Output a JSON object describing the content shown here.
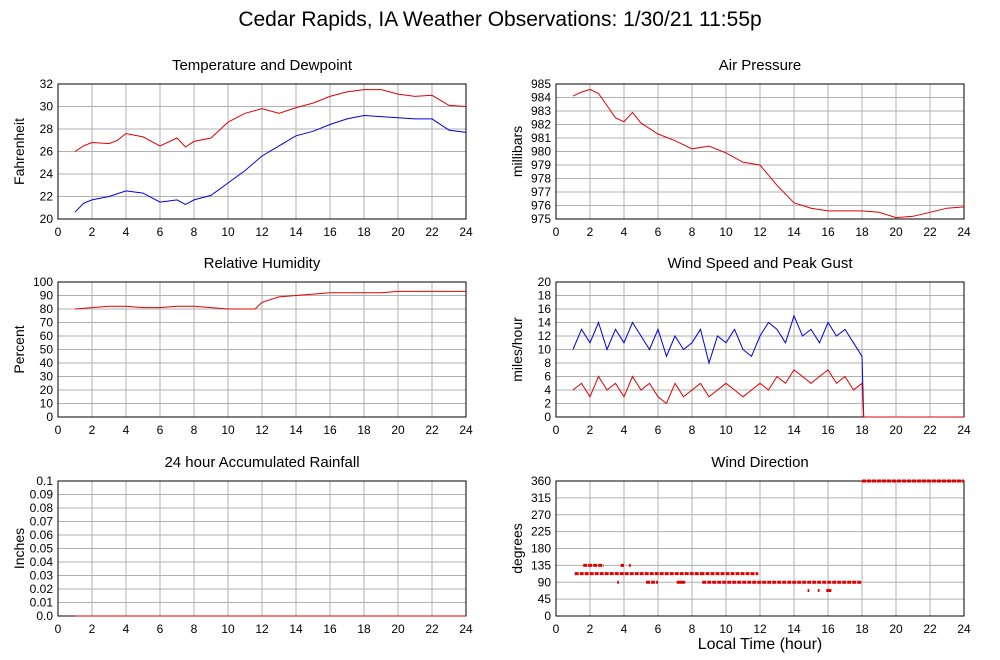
{
  "page_title": "Cedar Rapids, IA Weather Observations: 1/30/21 11:55p",
  "bottom_xlabel": "Local Time (hour)",
  "colors": {
    "red": "#e00000",
    "blue": "#0000e0",
    "grid": "#b0b0b0"
  },
  "chart_data": [
    {
      "id": "temp",
      "type": "line",
      "title": "Temperature and Dewpoint",
      "ylabel": "Fahrenheit",
      "xlim": [
        0,
        24
      ],
      "ylim": [
        20,
        32
      ],
      "xticks": [
        2,
        4,
        6,
        8,
        10,
        12,
        14,
        16,
        18,
        20,
        22,
        24
      ],
      "yticks": [
        20,
        22,
        24,
        26,
        28,
        30,
        32
      ],
      "grid": true,
      "series": [
        {
          "color": "#e00000",
          "x": [
            1,
            1.5,
            2,
            3,
            3.5,
            4,
            5,
            6,
            7,
            7.5,
            8,
            9,
            10,
            11,
            12,
            13,
            14,
            15,
            16,
            17,
            18,
            19,
            20,
            21,
            22,
            23,
            24
          ],
          "y": [
            26.0,
            26.5,
            26.8,
            26.7,
            27.0,
            27.6,
            27.3,
            26.5,
            27.2,
            26.4,
            26.9,
            27.2,
            28.6,
            29.4,
            29.8,
            29.4,
            29.9,
            30.3,
            30.9,
            31.3,
            31.5,
            31.5,
            31.1,
            30.9,
            31.0,
            30.1,
            30.0
          ]
        },
        {
          "color": "#0000e0",
          "x": [
            1,
            1.5,
            2,
            3,
            4,
            5,
            6,
            7,
            7.5,
            8,
            9,
            10,
            11,
            12,
            13,
            14,
            15,
            16,
            17,
            18,
            19,
            20,
            21,
            22,
            23,
            24
          ],
          "y": [
            20.6,
            21.4,
            21.7,
            22.0,
            22.5,
            22.3,
            21.5,
            21.7,
            21.3,
            21.7,
            22.1,
            23.2,
            24.3,
            25.6,
            26.5,
            27.4,
            27.8,
            28.4,
            28.9,
            29.2,
            29.1,
            29.0,
            28.9,
            28.9,
            27.9,
            27.7
          ]
        }
      ]
    },
    {
      "id": "pressure",
      "type": "line",
      "title": "Air Pressure",
      "ylabel": "millibars",
      "xlim": [
        0,
        24
      ],
      "ylim": [
        975,
        985
      ],
      "xticks": [
        2,
        4,
        6,
        8,
        10,
        12,
        14,
        16,
        18,
        20,
        22,
        24
      ],
      "yticks": [
        975,
        976,
        977,
        978,
        979,
        980,
        981,
        982,
        983,
        984,
        985
      ],
      "grid": true,
      "series": [
        {
          "color": "#e00000",
          "x": [
            1,
            1.5,
            2,
            2.5,
            3,
            3.5,
            4,
            4.5,
            5,
            6,
            7,
            8,
            9,
            10,
            11,
            12,
            13,
            14,
            15,
            16,
            17,
            18,
            19,
            20,
            21,
            22,
            23,
            24
          ],
          "y": [
            984.1,
            984.4,
            984.6,
            984.3,
            983.4,
            982.5,
            982.2,
            982.9,
            982.1,
            981.3,
            980.8,
            980.2,
            980.4,
            979.9,
            979.2,
            979.0,
            977.5,
            976.2,
            975.8,
            975.6,
            975.6,
            975.6,
            975.5,
            975.1,
            975.2,
            975.5,
            975.8,
            975.9
          ]
        }
      ]
    },
    {
      "id": "humidity",
      "type": "line",
      "title": "Relative Humidity",
      "ylabel": "Percent",
      "xlim": [
        0,
        24
      ],
      "ylim": [
        0,
        100
      ],
      "xticks": [
        2,
        4,
        6,
        8,
        10,
        12,
        14,
        16,
        18,
        20,
        22,
        24
      ],
      "yticks": [
        0,
        10,
        20,
        30,
        40,
        50,
        60,
        70,
        80,
        90,
        100
      ],
      "grid": true,
      "series": [
        {
          "color": "#e00000",
          "x": [
            1,
            2,
            3,
            4,
            5,
            6,
            7,
            8,
            9,
            10,
            11,
            11.6,
            12,
            13,
            14,
            15,
            16,
            17,
            18,
            19,
            20,
            21,
            22,
            23,
            24
          ],
          "y": [
            80,
            81,
            82,
            82,
            81,
            81,
            82,
            82,
            81,
            80,
            80,
            80,
            85,
            89,
            90,
            91,
            92,
            92,
            92,
            92,
            93,
            93,
            93,
            93,
            93
          ]
        }
      ]
    },
    {
      "id": "wind",
      "type": "line",
      "title": "Wind Speed and Peak Gust",
      "ylabel": "miles/hour",
      "xlim": [
        0,
        24
      ],
      "ylim": [
        0,
        20
      ],
      "xticks": [
        2,
        4,
        6,
        8,
        10,
        12,
        14,
        16,
        18,
        20,
        22,
        24
      ],
      "yticks": [
        0,
        2,
        4,
        6,
        8,
        10,
        12,
        14,
        16,
        18,
        20
      ],
      "grid": true,
      "series": [
        {
          "color": "#0000e0",
          "x": [
            1,
            1.5,
            2,
            2.5,
            3,
            3.5,
            4,
            4.5,
            5,
            5.5,
            6,
            6.5,
            7,
            7.5,
            8,
            8.5,
            9,
            9.5,
            10,
            10.5,
            11,
            11.5,
            12,
            12.5,
            13,
            13.5,
            14,
            14.5,
            15,
            15.5,
            16,
            16.5,
            17,
            17.5,
            18,
            18.1,
            19,
            20,
            21,
            22,
            23,
            24
          ],
          "y": [
            10,
            13,
            11,
            14,
            10,
            13,
            11,
            14,
            12,
            10,
            13,
            9,
            12,
            10,
            11,
            13,
            8,
            12,
            11,
            13,
            10,
            9,
            12,
            14,
            13,
            11,
            15,
            12,
            13,
            11,
            14,
            12,
            13,
            11,
            9,
            0,
            0,
            0,
            0,
            0,
            0,
            0
          ]
        },
        {
          "color": "#e00000",
          "x": [
            1,
            1.5,
            2,
            2.5,
            3,
            3.5,
            4,
            4.5,
            5,
            5.5,
            6,
            6.5,
            7,
            7.5,
            8,
            8.5,
            9,
            9.5,
            10,
            10.5,
            11,
            11.5,
            12,
            12.5,
            13,
            13.5,
            14,
            14.5,
            15,
            15.5,
            16,
            16.5,
            17,
            17.5,
            18,
            18.1,
            19,
            20,
            21,
            22,
            23,
            24
          ],
          "y": [
            4,
            5,
            3,
            6,
            4,
            5,
            3,
            6,
            4,
            5,
            3,
            2,
            5,
            3,
            4,
            5,
            3,
            4,
            5,
            4,
            3,
            4,
            5,
            4,
            6,
            5,
            7,
            6,
            5,
            6,
            7,
            5,
            6,
            4,
            5,
            0,
            0,
            0,
            0,
            0,
            0,
            0
          ]
        }
      ]
    },
    {
      "id": "rain",
      "type": "line",
      "title": "24 hour Accumulated Rainfall",
      "ylabel": "Inches",
      "xlim": [
        0,
        24
      ],
      "ylim": [
        0,
        0.1
      ],
      "xticks": [
        2,
        4,
        6,
        8,
        10,
        12,
        14,
        16,
        18,
        20,
        22,
        24
      ],
      "yticks": [
        0,
        0.01,
        0.02,
        0.03,
        0.04,
        0.05,
        0.06,
        0.07,
        0.08,
        0.09,
        0.1
      ],
      "yticklabels": [
        "0.0",
        "0.01",
        "0.02",
        "0.03",
        "0.04",
        "0.05",
        "0.06",
        "0.07",
        "0.08",
        "0.09",
        "0.1"
      ],
      "grid": true,
      "series": [
        {
          "color": "#e00000",
          "x": [
            1,
            24
          ],
          "y": [
            0,
            0
          ]
        }
      ]
    },
    {
      "id": "direction",
      "type": "scatter",
      "title": "Wind Direction",
      "ylabel": "degrees",
      "xlim": [
        0,
        24
      ],
      "ylim": [
        0,
        360
      ],
      "xticks": [
        2,
        4,
        6,
        8,
        10,
        12,
        14,
        16,
        18,
        20,
        22,
        24
      ],
      "yticks": [
        0,
        45,
        90,
        135,
        180,
        225,
        270,
        315,
        360
      ],
      "grid": true,
      "series": [
        {
          "color": "#e00000",
          "segments": [
            {
              "x0": 1.1,
              "x1": 8.5,
              "y": 113
            },
            {
              "x0": 1.6,
              "x1": 2.8,
              "y": 135
            },
            {
              "x0": 3.8,
              "x1": 4.0,
              "y": 135
            },
            {
              "x0": 4.3,
              "x1": 4.4,
              "y": 135
            },
            {
              "x0": 8.6,
              "x1": 18.0,
              "y": 90
            },
            {
              "x0": 8.5,
              "x1": 11.9,
              "y": 113
            },
            {
              "x0": 3.6,
              "x1": 3.7,
              "y": 90
            },
            {
              "x0": 5.3,
              "x1": 6.0,
              "y": 90
            },
            {
              "x0": 7.1,
              "x1": 7.6,
              "y": 90
            },
            {
              "x0": 14.8,
              "x1": 14.9,
              "y": 68
            },
            {
              "x0": 15.4,
              "x1": 15.5,
              "y": 68
            },
            {
              "x0": 15.9,
              "x1": 16.2,
              "y": 68
            },
            {
              "x0": 18.0,
              "x1": 24.0,
              "y": 360
            }
          ]
        }
      ]
    }
  ]
}
